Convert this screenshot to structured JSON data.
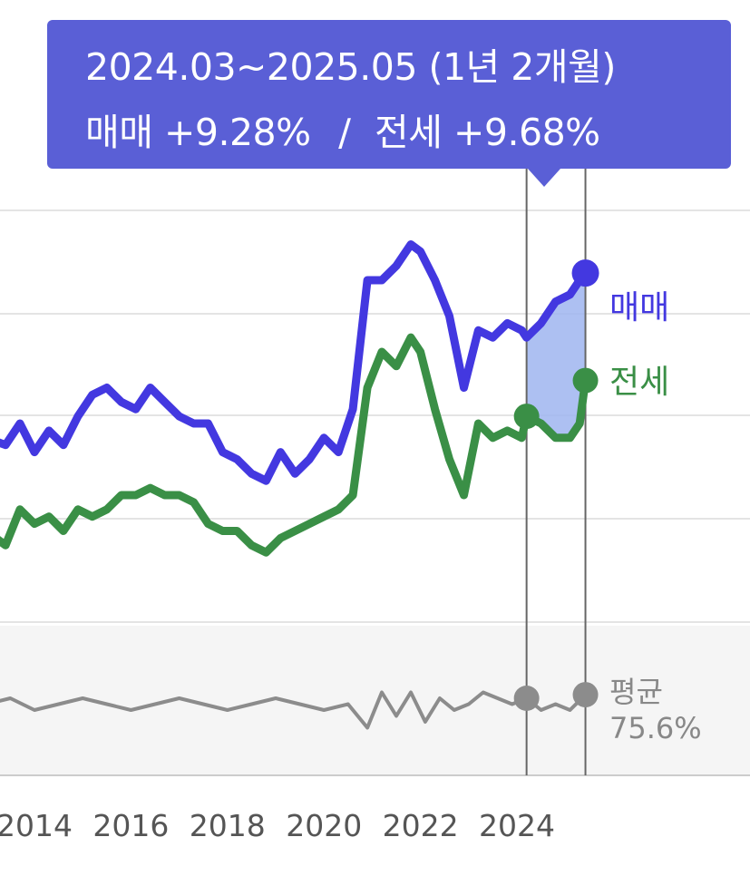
{
  "tooltip": {
    "range": "2024.03~2025.05 (1년 2개월)",
    "sale_label": "매매",
    "sale_change": "+9.28%",
    "separator": "/",
    "jeonse_label": "전세",
    "jeonse_change": "+9.68%"
  },
  "legend": {
    "sale": "매매",
    "jeonse": "전세",
    "avg_label": "평균",
    "avg_value": "75.6%"
  },
  "colors": {
    "sale": "#4338e0",
    "jeonse": "#3a8f46",
    "ratio": "#8c8c8c",
    "tooltip_bg": "#5a5fd6",
    "highlight_fill": "#9fb5f0"
  },
  "chart_data": {
    "type": "line",
    "x_ticks": [
      "2014",
      "2016",
      "2018",
      "2020",
      "2022",
      "2024"
    ],
    "selection": {
      "start": "2024.03",
      "end": "2025.05"
    },
    "series": [
      {
        "name": "매매",
        "x": [
          2013.0,
          2013.4,
          2013.7,
          2014.0,
          2014.3,
          2014.6,
          2014.9,
          2015.2,
          2015.5,
          2015.8,
          2016.1,
          2016.4,
          2016.7,
          2017.0,
          2017.3,
          2017.6,
          2017.9,
          2018.2,
          2018.5,
          2018.8,
          2019.1,
          2019.4,
          2019.7,
          2020.0,
          2020.3,
          2020.6,
          2020.9,
          2021.2,
          2021.5,
          2021.8,
          2022.0,
          2022.3,
          2022.6,
          2022.9,
          2023.2,
          2023.5,
          2023.8,
          2024.1,
          2024.2,
          2024.5,
          2024.8,
          2025.1,
          2025.3,
          2025.42
        ],
        "y": [
          48,
          47,
          50,
          46,
          49,
          47,
          51,
          54,
          55,
          53,
          52,
          55,
          53,
          51,
          50,
          50,
          46,
          45,
          43,
          42,
          46,
          43,
          45,
          48,
          46,
          52,
          70,
          70,
          72,
          75,
          74,
          70,
          65,
          55,
          63,
          62,
          64,
          63,
          62,
          64,
          67,
          68,
          70,
          71
        ]
      },
      {
        "name": "전세",
        "x": [
          2013.0,
          2013.4,
          2013.7,
          2014.0,
          2014.3,
          2014.6,
          2014.9,
          2015.2,
          2015.5,
          2015.8,
          2016.1,
          2016.4,
          2016.7,
          2017.0,
          2017.3,
          2017.6,
          2017.9,
          2018.2,
          2018.5,
          2018.8,
          2019.1,
          2019.4,
          2019.7,
          2020.0,
          2020.3,
          2020.6,
          2020.9,
          2021.2,
          2021.5,
          2021.8,
          2022.0,
          2022.3,
          2022.6,
          2022.9,
          2023.2,
          2023.5,
          2023.8,
          2024.1,
          2024.2,
          2024.5,
          2024.8,
          2025.1,
          2025.3,
          2025.42
        ],
        "y": [
          35,
          33,
          38,
          36,
          37,
          35,
          38,
          37,
          38,
          40,
          40,
          41,
          40,
          40,
          39,
          36,
          35,
          35,
          33,
          32,
          34,
          35,
          36,
          37,
          38,
          40,
          55,
          60,
          58,
          62,
          60,
          52,
          45,
          40,
          50,
          48,
          49,
          48,
          51,
          50,
          48,
          48,
          50,
          56
        ]
      },
      {
        "name": "평균",
        "x": [
          2013.0,
          2013.5,
          2014.0,
          2014.5,
          2015.0,
          2015.5,
          2016.0,
          2016.5,
          2017.0,
          2017.5,
          2018.0,
          2018.5,
          2019.0,
          2019.5,
          2020.0,
          2020.5,
          2020.9,
          2021.2,
          2021.5,
          2021.8,
          2022.1,
          2022.4,
          2022.7,
          2023.0,
          2023.3,
          2023.6,
          2023.9,
          2024.2,
          2024.5,
          2024.8,
          2025.1,
          2025.42
        ],
        "y": [
          74,
          75,
          73,
          74,
          75,
          74,
          73,
          74,
          75,
          74,
          73,
          74,
          75,
          74,
          73,
          74,
          70,
          76,
          72,
          76,
          71,
          75,
          73,
          74,
          76,
          75,
          74,
          75,
          73,
          74,
          73,
          75.6
        ]
      }
    ]
  }
}
